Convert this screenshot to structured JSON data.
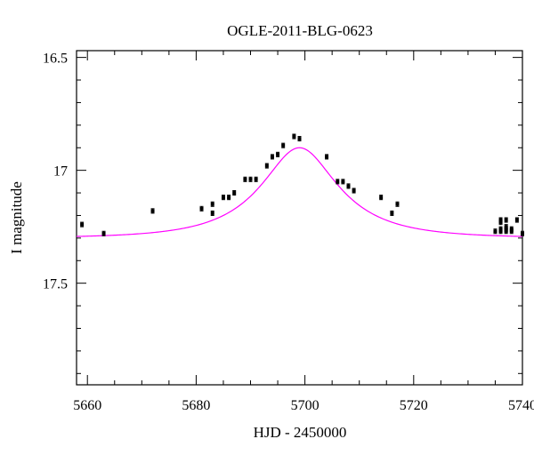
{
  "chart_data": {
    "type": "scatter",
    "title": "OGLE-2011-BLG-0623",
    "xlabel": "HJD - 2450000",
    "ylabel": "I magnitude",
    "xlim": [
      5658,
      5740
    ],
    "ylim": [
      17.95,
      16.47
    ],
    "y_inverted": true,
    "x_ticks": [
      5660,
      5680,
      5700,
      5720,
      5740
    ],
    "x_tick_labels": [
      "5660",
      "5680",
      "5700",
      "5720",
      "5740"
    ],
    "y_ticks": [
      16.5,
      17.0,
      17.5
    ],
    "y_tick_labels": [
      "16.5",
      "17",
      "17.5"
    ],
    "grid": false,
    "colors": {
      "points": "#000000",
      "model": "#ff00ff"
    },
    "series": [
      {
        "kind": "points",
        "x": [
          5659,
          5663,
          5672,
          5681,
          5683,
          5683,
          5685,
          5686,
          5687,
          5689,
          5690,
          5691,
          5693,
          5694,
          5695,
          5696,
          5698,
          5699,
          5704,
          5706,
          5707,
          5708,
          5709,
          5714,
          5716,
          5717,
          5735,
          5736,
          5736,
          5736,
          5736,
          5737,
          5737,
          5737,
          5737,
          5738,
          5738,
          5739,
          5740
        ],
        "y": [
          17.24,
          17.28,
          17.18,
          17.17,
          17.19,
          17.15,
          17.12,
          17.12,
          17.1,
          17.04,
          17.04,
          17.04,
          16.98,
          16.94,
          16.93,
          16.89,
          16.85,
          16.86,
          16.94,
          17.05,
          17.05,
          17.07,
          17.09,
          17.12,
          17.19,
          17.15,
          17.27,
          17.27,
          17.26,
          17.23,
          17.22,
          17.22,
          17.25,
          17.26,
          17.27,
          17.26,
          17.27,
          17.22,
          17.28
        ],
        "yerr": 0.01
      },
      {
        "kind": "model",
        "t0": 5699,
        "tE": 14.8,
        "u0": 0.5,
        "baseline": 17.3,
        "amplitude": 0.4
      }
    ]
  }
}
